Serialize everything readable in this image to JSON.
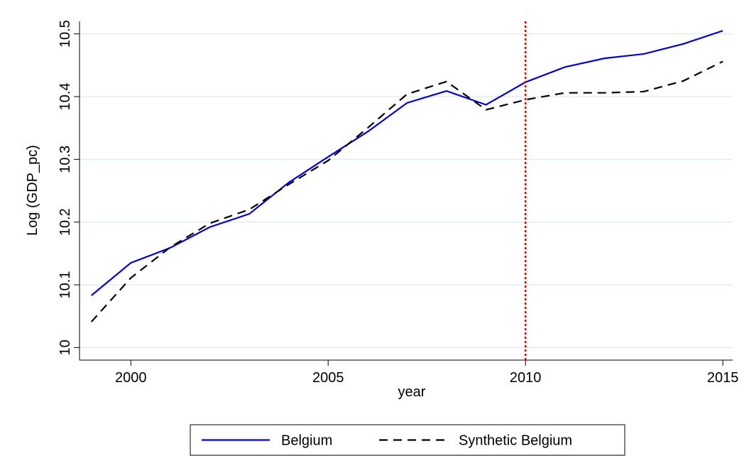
{
  "chart_data": {
    "type": "line",
    "x": [
      1999,
      2000,
      2001,
      2002,
      2003,
      2004,
      2005,
      2006,
      2007,
      2008,
      2009,
      2010,
      2011,
      2012,
      2013,
      2014,
      2015
    ],
    "series": [
      {
        "name": "Belgium",
        "color": "#0000d8",
        "style": "solid",
        "values": [
          10.083,
          10.135,
          10.159,
          10.192,
          10.213,
          10.263,
          10.304,
          10.344,
          10.39,
          10.409,
          10.387,
          10.423,
          10.447,
          10.461,
          10.468,
          10.484,
          10.505
        ]
      },
      {
        "name": "Synthetic Belgium",
        "color": "#000000",
        "style": "dashed",
        "values": [
          10.041,
          10.111,
          10.16,
          10.198,
          10.22,
          10.26,
          10.298,
          10.35,
          10.404,
          10.424,
          10.379,
          10.395,
          10.406,
          10.406,
          10.408,
          10.425,
          10.456
        ]
      }
    ],
    "xlabel": "year",
    "ylabel": "Log (GDP_pc)",
    "xlim": [
      1998.7,
      2015.25
    ],
    "xticks": [
      2000,
      2005,
      2010,
      2015
    ],
    "ylim": [
      9.98,
      10.52
    ],
    "yticks": [
      10,
      10.1,
      10.2,
      10.3,
      10.4,
      10.5
    ],
    "grid": true,
    "grid_color": "#e3ebef",
    "vline": {
      "x": 2010,
      "color": "#e00000"
    },
    "legend": "bottom"
  }
}
